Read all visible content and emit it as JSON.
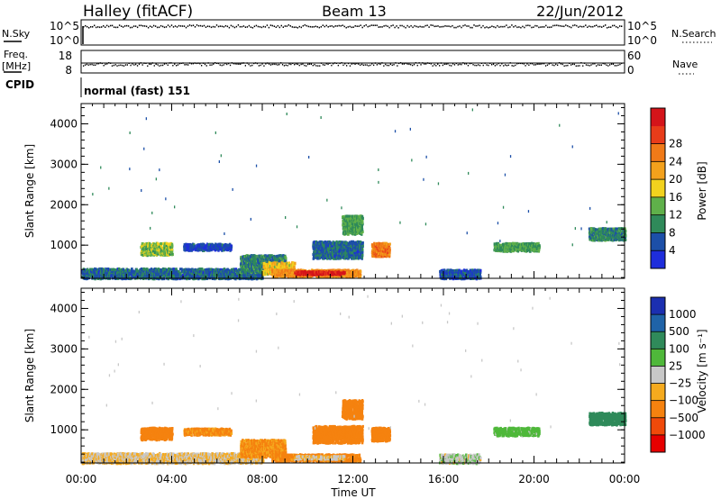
{
  "header": {
    "station": "Halley (fitACF)",
    "beam": "Beam 13",
    "date": "22/Jun/2012"
  },
  "top_panels": {
    "nsky": {
      "label": "N.Sky",
      "tick_high": "10^5",
      "tick_low": "10^0"
    },
    "nsearch": {
      "label": "N.Search",
      "tick_high": "10^5",
      "tick_low": "10^0"
    },
    "freq": {
      "label_line1": "Freq.",
      "label_line2": "[MHz]",
      "tick_high": "18",
      "tick_low": "8"
    },
    "nave": {
      "label": "Nave",
      "tick_high": "60",
      "tick_low": "0"
    },
    "cpid": {
      "label": "CPID",
      "value": "normal (fast) 151"
    }
  },
  "x_axis": {
    "label": "Time UT",
    "ticks": [
      "00:00",
      "04:00",
      "08:00",
      "12:00",
      "16:00",
      "20:00",
      "00:00"
    ]
  },
  "colors": {
    "power": [
      "#1e2ddb",
      "#1c4fa8",
      "#2f8a5a",
      "#5fb04a",
      "#f2d21e",
      "#f3a11c",
      "#f07a18",
      "#e83c1a",
      "#d4141a"
    ],
    "velocity": [
      "#e60000",
      "#f04a0a",
      "#f5820f",
      "#f5aa1e",
      "#c8c8c8",
      "#4fb83a",
      "#2f8a5a",
      "#1f63a8",
      "#1b2fb0"
    ]
  },
  "chart_data": [
    {
      "type": "heatmap",
      "panel": "power",
      "xlabel": "Time UT",
      "ylabel": "Slant Range [km]",
      "xlim": [
        0,
        24
      ],
      "ylim": [
        180,
        4500
      ],
      "yticks": [
        "1000",
        "2000",
        "3000",
        "4000"
      ],
      "colorbar": {
        "label": "Power [dB]",
        "ticks": [
          "4",
          "8",
          "12",
          "16",
          "20",
          "24",
          "28"
        ],
        "range": [
          0,
          30
        ]
      },
      "scatter_regions": [
        {
          "t0": 0.0,
          "t1": 8.0,
          "r0": 200,
          "r1": 450,
          "value": 6
        },
        {
          "t0": 2.6,
          "t1": 4.0,
          "r0": 780,
          "r1": 1080,
          "value": 12
        },
        {
          "t0": 4.5,
          "t1": 6.6,
          "r0": 900,
          "r1": 1060,
          "value": 4
        },
        {
          "t0": 7.0,
          "t1": 9.0,
          "r0": 350,
          "r1": 780,
          "value": 8
        },
        {
          "t0": 8.0,
          "t1": 9.4,
          "r0": 300,
          "r1": 600,
          "value": 16
        },
        {
          "t0": 8.4,
          "t1": 12.3,
          "r0": 250,
          "r1": 420,
          "value": 20
        },
        {
          "t0": 9.4,
          "t1": 11.6,
          "r0": 300,
          "r1": 380,
          "value": 28
        },
        {
          "t0": 10.2,
          "t1": 12.4,
          "r0": 700,
          "r1": 1120,
          "value": 6
        },
        {
          "t0": 11.5,
          "t1": 12.4,
          "r0": 1300,
          "r1": 1760,
          "value": 10
        },
        {
          "t0": 12.8,
          "t1": 13.6,
          "r0": 750,
          "r1": 1080,
          "value": 22
        },
        {
          "t0": 15.8,
          "t1": 17.6,
          "r0": 200,
          "r1": 420,
          "value": 5
        },
        {
          "t0": 18.2,
          "t1": 20.2,
          "r0": 880,
          "r1": 1080,
          "value": 10
        },
        {
          "t0": 22.4,
          "t1": 24.0,
          "r0": 1150,
          "r1": 1450,
          "value": 8
        }
      ]
    },
    {
      "type": "heatmap",
      "panel": "velocity",
      "xlabel": "Time UT",
      "ylabel": "Slant Range [km]",
      "xlim": [
        0,
        24
      ],
      "ylim": [
        180,
        4500
      ],
      "yticks": [
        "1000",
        "2000",
        "3000",
        "4000"
      ],
      "colorbar": {
        "label": "Velocity [m s⁻¹]",
        "ticks": [
          "1000",
          "500",
          "100",
          "25",
          "−25",
          "−100",
          "−500",
          "−1000"
        ]
      },
      "scatter_regions": [
        {
          "t0": 0.0,
          "t1": 8.0,
          "r0": 200,
          "r1": 450,
          "value": -25
        },
        {
          "t0": 2.6,
          "t1": 4.0,
          "r0": 780,
          "r1": 1080,
          "value": -150
        },
        {
          "t0": 4.5,
          "t1": 6.6,
          "r0": 900,
          "r1": 1060,
          "value": -120
        },
        {
          "t0": 7.0,
          "t1": 9.0,
          "r0": 350,
          "r1": 780,
          "value": -110
        },
        {
          "t0": 8.4,
          "t1": 12.3,
          "r0": 250,
          "r1": 420,
          "value": -130
        },
        {
          "t0": 9.4,
          "t1": 11.6,
          "r0": 300,
          "r1": 380,
          "value": -20
        },
        {
          "t0": 10.2,
          "t1": 12.4,
          "r0": 700,
          "r1": 1120,
          "value": -140
        },
        {
          "t0": 11.5,
          "t1": 12.4,
          "r0": 1300,
          "r1": 1760,
          "value": -160
        },
        {
          "t0": 12.8,
          "t1": 13.6,
          "r0": 750,
          "r1": 1080,
          "value": -170
        },
        {
          "t0": 15.8,
          "t1": 17.6,
          "r0": 200,
          "r1": 420,
          "value": 10
        },
        {
          "t0": 18.2,
          "t1": 20.2,
          "r0": 880,
          "r1": 1080,
          "value": 60
        },
        {
          "t0": 22.4,
          "t1": 24.0,
          "r0": 1150,
          "r1": 1450,
          "value": 200
        }
      ]
    }
  ]
}
